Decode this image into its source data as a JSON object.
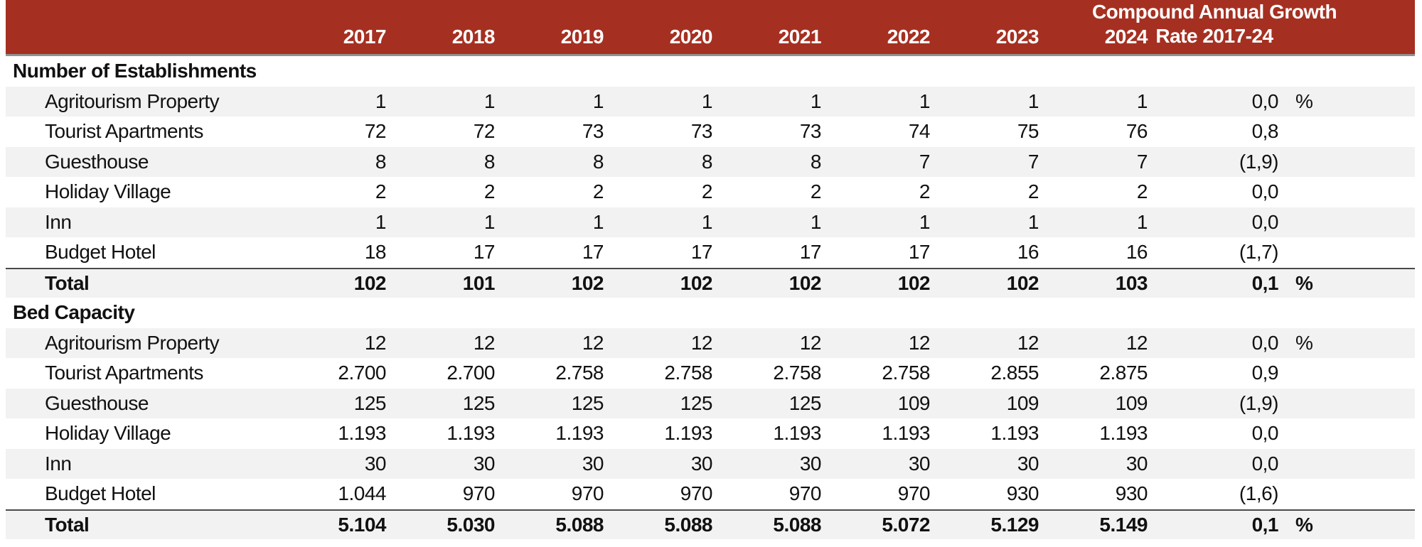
{
  "colors": {
    "red": "#A53021",
    "stripe": "#F2F2F2",
    "header_border": "#919191",
    "total_border": "#4A4A4A",
    "header_text": "#FFFFFF"
  },
  "chart_data": {
    "type": "table",
    "years": [
      "2017",
      "2018",
      "2019",
      "2020",
      "2021",
      "2022",
      "2023",
      "2024"
    ],
    "cagr_header": {
      "line1": "Compound Annual Growth",
      "line2": "Rate 2017-24"
    },
    "sections": [
      {
        "title": "Number of Establishments",
        "rows": [
          {
            "label": "Agritourism Property",
            "values": [
              "1",
              "1",
              "1",
              "1",
              "1",
              "1",
              "1",
              "1"
            ],
            "cagr": "0,0",
            "pct": "%"
          },
          {
            "label": "Tourist Apartments",
            "values": [
              "72",
              "72",
              "73",
              "73",
              "73",
              "74",
              "75",
              "76"
            ],
            "cagr": "0,8",
            "pct": ""
          },
          {
            "label": "Guesthouse",
            "values": [
              "8",
              "8",
              "8",
              "8",
              "8",
              "7",
              "7",
              "7"
            ],
            "cagr": "(1,9)",
            "pct": ""
          },
          {
            "label": "Holiday Village",
            "values": [
              "2",
              "2",
              "2",
              "2",
              "2",
              "2",
              "2",
              "2"
            ],
            "cagr": "0,0",
            "pct": ""
          },
          {
            "label": "Inn",
            "values": [
              "1",
              "1",
              "1",
              "1",
              "1",
              "1",
              "1",
              "1"
            ],
            "cagr": "0,0",
            "pct": ""
          },
          {
            "label": "Budget Hotel",
            "values": [
              "18",
              "17",
              "17",
              "17",
              "17",
              "17",
              "16",
              "16"
            ],
            "cagr": "(1,7)",
            "pct": ""
          }
        ],
        "total": {
          "label": "Total",
          "values": [
            "102",
            "101",
            "102",
            "102",
            "102",
            "102",
            "102",
            "103"
          ],
          "cagr": "0,1",
          "pct": "%"
        }
      },
      {
        "title": "Bed Capacity",
        "rows": [
          {
            "label": "Agritourism Property",
            "values": [
              "12",
              "12",
              "12",
              "12",
              "12",
              "12",
              "12",
              "12"
            ],
            "cagr": "0,0",
            "pct": "%"
          },
          {
            "label": "Tourist Apartments",
            "values": [
              "2.700",
              "2.700",
              "2.758",
              "2.758",
              "2.758",
              "2.758",
              "2.855",
              "2.875"
            ],
            "cagr": "0,9",
            "pct": ""
          },
          {
            "label": "Guesthouse",
            "values": [
              "125",
              "125",
              "125",
              "125",
              "125",
              "109",
              "109",
              "109"
            ],
            "cagr": "(1,9)",
            "pct": ""
          },
          {
            "label": "Holiday Village",
            "values": [
              "1.193",
              "1.193",
              "1.193",
              "1.193",
              "1.193",
              "1.193",
              "1.193",
              "1.193"
            ],
            "cagr": "0,0",
            "pct": ""
          },
          {
            "label": "Inn",
            "values": [
              "30",
              "30",
              "30",
              "30",
              "30",
              "30",
              "30",
              "30"
            ],
            "cagr": "0,0",
            "pct": ""
          },
          {
            "label": "Budget Hotel",
            "values": [
              "1.044",
              "970",
              "970",
              "970",
              "970",
              "970",
              "930",
              "930"
            ],
            "cagr": "(1,6)",
            "pct": ""
          }
        ],
        "total": {
          "label": "Total",
          "values": [
            "5.104",
            "5.030",
            "5.088",
            "5.088",
            "5.088",
            "5.072",
            "5.129",
            "5.149"
          ],
          "cagr": "0,1",
          "pct": "%"
        }
      }
    ]
  }
}
